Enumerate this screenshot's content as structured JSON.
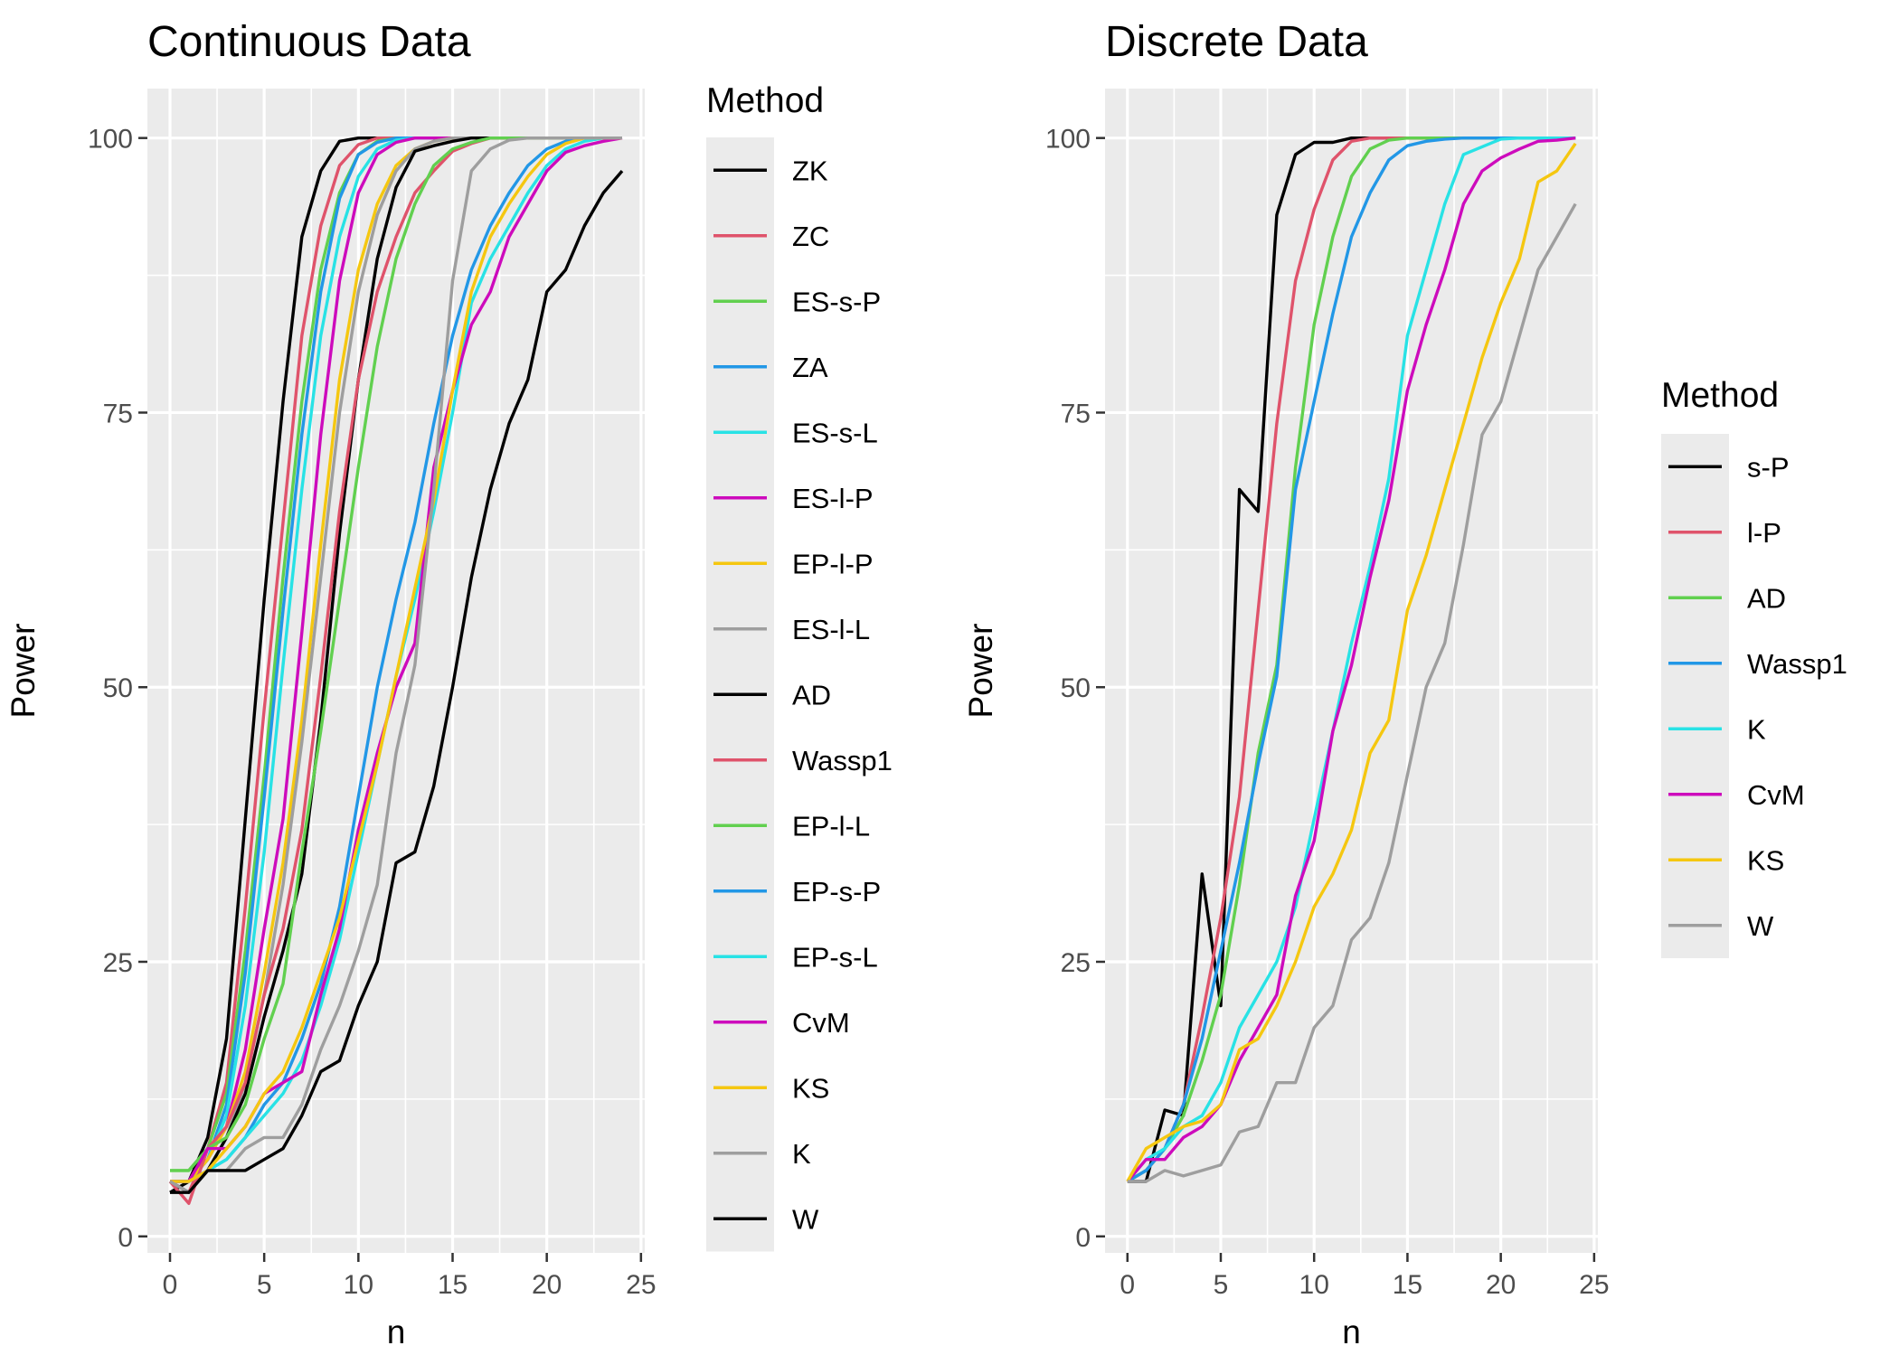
{
  "chart_data": [
    {
      "type": "line",
      "title": "Continuous Data",
      "xlabel": "n",
      "ylabel": "Power",
      "xlim": [
        -1.2,
        25.2
      ],
      "ylim": [
        -1.5,
        104.5
      ],
      "xticks": [
        0,
        5,
        10,
        15,
        20,
        25
      ],
      "yticks": [
        0,
        25,
        50,
        75,
        100
      ],
      "grid": true,
      "legend": {
        "title": "Method",
        "placement": "right"
      },
      "x": [
        0,
        1,
        2,
        3,
        4,
        5,
        6,
        7,
        8,
        9,
        10,
        11,
        12,
        13,
        14,
        15,
        16,
        17,
        18,
        19,
        20,
        21,
        22,
        23,
        24
      ],
      "series": [
        {
          "name": "ZK",
          "color": "#000000",
          "values": [
            4,
            5,
            9,
            18,
            38,
            58,
            76,
            91,
            97,
            99.7,
            100,
            100,
            100,
            100,
            100,
            100,
            100,
            100,
            100,
            100,
            100,
            100,
            100,
            100,
            100
          ]
        },
        {
          "name": "ZC",
          "color": "#DF536B",
          "values": [
            5,
            4,
            8,
            14,
            30,
            48,
            65,
            82,
            92,
            97.5,
            99.4,
            100,
            100,
            100,
            100,
            100,
            100,
            100,
            100,
            100,
            100,
            100,
            100,
            100,
            100
          ]
        },
        {
          "name": "ES-s-P",
          "color": "#61D04F",
          "values": [
            6,
            6,
            8,
            13,
            26,
            42,
            60,
            76,
            88,
            95,
            98.5,
            99.7,
            100,
            100,
            100,
            100,
            100,
            100,
            100,
            100,
            100,
            100,
            100,
            100,
            100
          ]
        },
        {
          "name": "ZA",
          "color": "#2297E6",
          "values": [
            5,
            5,
            7,
            12,
            24,
            40,
            57,
            73,
            86,
            94.5,
            98.5,
            99.6,
            100,
            100,
            100,
            100,
            100,
            100,
            100,
            100,
            100,
            100,
            100,
            100,
            100
          ]
        },
        {
          "name": "ES-s-L",
          "color": "#28E2E5",
          "values": [
            5,
            5,
            7,
            11,
            21,
            35,
            52,
            68,
            82,
            91,
            96.5,
            99,
            99.8,
            100,
            100,
            100,
            100,
            100,
            100,
            100,
            100,
            100,
            100,
            100,
            100
          ]
        },
        {
          "name": "ES-l-P",
          "color": "#CD0BBC",
          "values": [
            5,
            5,
            7,
            10,
            17,
            28,
            38,
            55,
            73,
            87,
            95,
            98.5,
            99.6,
            100,
            100,
            100,
            100,
            100,
            100,
            100,
            100,
            100,
            100,
            100,
            100
          ]
        },
        {
          "name": "EP-l-P",
          "color": "#F5C710",
          "values": [
            5,
            5,
            7,
            10,
            15,
            24,
            34,
            47,
            63,
            78,
            88,
            94,
            97.5,
            99,
            99.7,
            100,
            100,
            100,
            100,
            100,
            100,
            100,
            100,
            100,
            100
          ]
        },
        {
          "name": "ES-l-L",
          "color": "#9E9E9E",
          "values": [
            5,
            4,
            6,
            9,
            14,
            22,
            32,
            45,
            60,
            75,
            86,
            93,
            97,
            99,
            99.7,
            100,
            100,
            100,
            100,
            100,
            100,
            100,
            100,
            100,
            100
          ]
        },
        {
          "name": "AD",
          "color": "#000000",
          "values": [
            5,
            4,
            6,
            9,
            13,
            20,
            26,
            33,
            47,
            64,
            78,
            89,
            95.5,
            98.8,
            99.3,
            99.7,
            100,
            100,
            100,
            100,
            100,
            100,
            100,
            100,
            100
          ]
        },
        {
          "name": "Wassp1",
          "color": "#DF536B",
          "values": [
            5,
            3,
            8,
            10,
            14,
            22,
            28,
            37,
            51,
            66,
            78,
            86,
            91,
            95,
            97,
            98.8,
            99.5,
            100,
            100,
            100,
            100,
            100,
            100,
            100,
            100
          ]
        },
        {
          "name": "EP-l-L",
          "color": "#61D04F",
          "values": [
            6,
            6,
            8,
            9,
            12,
            18,
            23,
            35,
            46,
            58,
            70,
            81,
            89,
            94,
            97.5,
            99,
            99.6,
            100,
            100,
            100,
            100,
            100,
            100,
            100,
            100
          ]
        },
        {
          "name": "EP-s-P",
          "color": "#2297E6",
          "values": [
            5,
            5,
            6,
            7,
            9,
            12,
            14,
            18,
            23,
            30,
            40,
            50,
            58,
            65,
            74,
            82,
            88,
            92,
            95,
            97.5,
            99,
            99.7,
            100,
            100,
            100
          ]
        },
        {
          "name": "EP-s-L",
          "color": "#28E2E5",
          "values": [
            5,
            5,
            6,
            7,
            9,
            11,
            13,
            16,
            21,
            27,
            35,
            43,
            51,
            58,
            66,
            75,
            85,
            89,
            92,
            95,
            97.5,
            99,
            99.7,
            100,
            100
          ]
        },
        {
          "name": "CvM",
          "color": "#CD0BBC",
          "values": [
            5,
            5,
            8,
            8,
            10,
            13,
            14,
            15,
            22,
            28,
            37,
            44,
            50,
            54,
            70,
            77,
            83,
            86,
            91,
            94,
            97,
            98.7,
            99.3,
            99.7,
            100
          ]
        },
        {
          "name": "KS",
          "color": "#F5C710",
          "values": [
            5,
            5,
            6,
            8,
            10,
            13,
            15,
            19,
            24,
            29,
            36,
            43,
            51,
            59,
            67,
            77,
            86,
            91,
            94,
            96.5,
            98.5,
            99.5,
            100,
            100,
            100
          ]
        },
        {
          "name": "K",
          "color": "#9E9E9E",
          "values": [
            5,
            4,
            6,
            6,
            8,
            9,
            9,
            12,
            17,
            21,
            26,
            32,
            44,
            52,
            68,
            87,
            97,
            99,
            99.8,
            100,
            100,
            100,
            100,
            100,
            100
          ]
        },
        {
          "name": "W",
          "color": "#000000",
          "values": [
            4,
            4,
            6,
            6,
            6,
            7,
            8,
            11,
            15,
            16,
            21,
            25,
            34,
            35,
            41,
            50,
            60,
            68,
            74,
            78,
            86,
            88,
            92,
            95,
            97
          ]
        }
      ]
    },
    {
      "type": "line",
      "title": "Discrete Data",
      "xlabel": "n",
      "ylabel": "Power",
      "xlim": [
        -1.2,
        25.2
      ],
      "ylim": [
        -1.5,
        104.5
      ],
      "xticks": [
        0,
        5,
        10,
        15,
        20,
        25
      ],
      "yticks": [
        0,
        25,
        50,
        75,
        100
      ],
      "grid": true,
      "legend": {
        "title": "Method",
        "placement": "right"
      },
      "x": [
        0,
        1,
        2,
        3,
        4,
        5,
        6,
        7,
        8,
        9,
        10,
        11,
        12,
        13,
        14,
        15,
        16,
        17,
        18,
        19,
        20,
        21,
        22,
        23,
        24
      ],
      "series": [
        {
          "name": "s-P",
          "color": "#000000",
          "values": [
            5,
            5,
            11.5,
            11,
            33,
            21,
            68,
            66,
            93,
            98.5,
            99.6,
            99.6,
            100,
            100,
            100,
            100,
            100,
            100,
            100,
            100,
            100,
            100,
            100,
            100,
            100
          ]
        },
        {
          "name": "l-P",
          "color": "#DF536B",
          "values": [
            5,
            6,
            8,
            12,
            20,
            29,
            40,
            57,
            74,
            87,
            93.5,
            98,
            99.7,
            100,
            100,
            100,
            100,
            100,
            100,
            100,
            100,
            100,
            100,
            100,
            100
          ]
        },
        {
          "name": "AD",
          "color": "#61D04F",
          "values": [
            5,
            6,
            8,
            11,
            16,
            22,
            32,
            44,
            52,
            70,
            83,
            91,
            96.5,
            99,
            99.8,
            100,
            100,
            100,
            100,
            100,
            100,
            100,
            100,
            100,
            100
          ]
        },
        {
          "name": "Wassp1",
          "color": "#2297E6",
          "values": [
            5,
            6,
            8,
            12,
            18,
            26,
            34,
            43,
            51,
            68,
            76,
            84,
            91,
            95,
            98,
            99.3,
            99.7,
            99.9,
            100,
            100,
            100,
            100,
            100,
            100,
            100
          ]
        },
        {
          "name": "K",
          "color": "#28E2E5",
          "values": [
            5,
            7,
            8,
            10,
            11,
            14,
            19,
            22,
            25,
            30,
            38,
            46,
            54,
            61,
            69,
            82,
            88,
            94,
            98.5,
            99.2,
            99.9,
            100,
            100,
            100,
            100
          ]
        },
        {
          "name": "CvM",
          "color": "#CD0BBC",
          "values": [
            5,
            7,
            7,
            9,
            10,
            12,
            16,
            19,
            22,
            31,
            36,
            46,
            52,
            60,
            67,
            77,
            83,
            88,
            94,
            97,
            98.2,
            99,
            99.7,
            99.8,
            100
          ]
        },
        {
          "name": "KS",
          "color": "#F5C710",
          "values": [
            5,
            8,
            9,
            10,
            10.5,
            12,
            17,
            18,
            21,
            25,
            30,
            33,
            37,
            44,
            47,
            57,
            62,
            68,
            74,
            80,
            85,
            89,
            96,
            97,
            99.5
          ]
        },
        {
          "name": "W",
          "color": "#9E9E9E",
          "values": [
            5,
            5,
            6,
            5.5,
            6,
            6.5,
            9.5,
            10,
            14,
            14,
            19,
            21,
            27,
            29,
            34,
            42,
            50,
            54,
            63,
            73,
            76,
            82,
            88,
            91,
            94
          ]
        }
      ]
    }
  ]
}
